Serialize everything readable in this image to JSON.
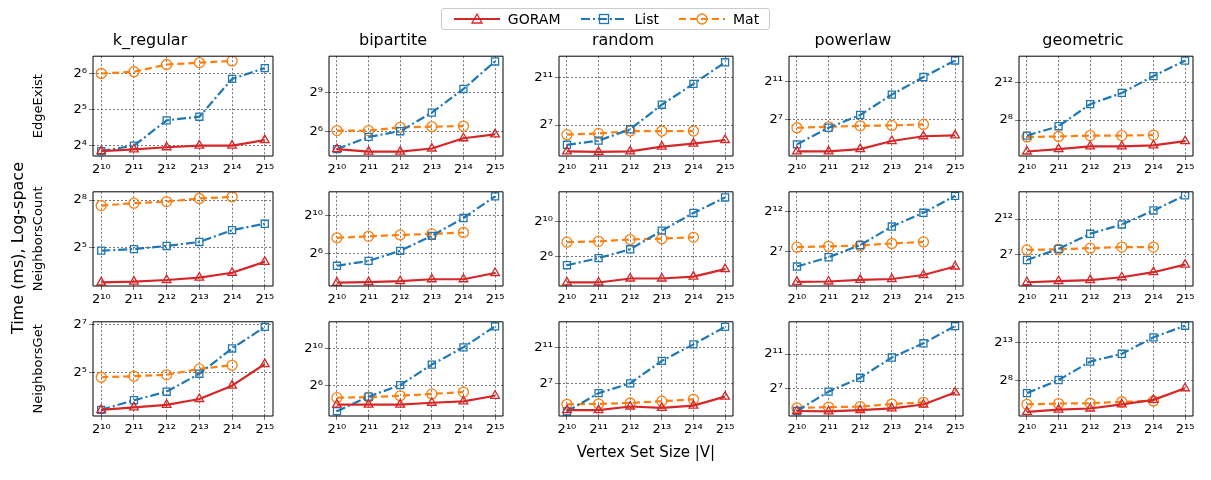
{
  "chart_data": [
    {
      "type": "line",
      "title": "k_regular",
      "ylabel": "EdgeExist",
      "legend": "top",
      "grid": true,
      "log": "xy",
      "x": [
        1024,
        2048,
        4096,
        8192,
        16384,
        32768
      ],
      "xlim": [
        860,
        39000
      ],
      "xticks": [
        {
          "value": 1024,
          "label": "2¹⁰"
        },
        {
          "value": 2048,
          "label": "2¹¹"
        },
        {
          "value": 4096,
          "label": "2¹²"
        },
        {
          "value": 8192,
          "label": "2¹³"
        },
        {
          "value": 16384,
          "label": "2¹⁴"
        },
        {
          "value": 32768,
          "label": "2¹⁵"
        }
      ],
      "ylim": [
        13.1,
        89.3
      ],
      "yticks": [
        {
          "value": 16,
          "label": "2⁴"
        },
        {
          "value": 32,
          "label": "2⁵"
        },
        {
          "value": 64,
          "label": "2⁶"
        }
      ],
      "series": [
        {
          "name": "GORAM",
          "color": "#d62728",
          "marker": "triangle",
          "line_style": "solid",
          "values": [
            14.4,
            14.9,
            15.5,
            16,
            16,
            17.8
          ]
        },
        {
          "name": "List",
          "color": "#1f77b4",
          "marker": "square",
          "line_style": "dashdot",
          "values": [
            14.4,
            16,
            26,
            27.9,
            57.7,
            71
          ]
        },
        {
          "name": "Mat",
          "color": "#ff7f0e",
          "marker": "circle",
          "line_style": "dashed",
          "values": [
            64,
            66.2,
            76.1,
            78.8,
            81.6,
            null
          ]
        }
      ]
    },
    {
      "type": "line",
      "title": "bipartite",
      "grid": true,
      "log": "xy",
      "x": [
        1024,
        2048,
        4096,
        8192,
        16384,
        32768
      ],
      "xlim": [
        860,
        39000
      ],
      "xticks": [
        {
          "value": 1024,
          "label": "2¹⁰"
        },
        {
          "value": 2048,
          "label": "2¹¹"
        },
        {
          "value": 4096,
          "label": "2¹²"
        },
        {
          "value": 8192,
          "label": "2¹³"
        },
        {
          "value": 16384,
          "label": "2¹⁴"
        },
        {
          "value": 32768,
          "label": "2¹⁵"
        }
      ],
      "ylim": [
        16.7,
        3716
      ],
      "yticks": [
        {
          "value": 64,
          "label": "2⁶"
        },
        {
          "value": 512,
          "label": "2⁹"
        }
      ],
      "series": [
        {
          "color": "#d62728",
          "marker": "triangle",
          "line_style": "solid",
          "values": [
            24.3,
            21.1,
            21.1,
            25.1,
            43.7,
            53.8
          ]
        },
        {
          "color": "#1f77b4",
          "marker": "square",
          "line_style": "dashdot",
          "values": [
            24.3,
            46.9,
            64,
            175,
            630,
            2798
          ]
        },
        {
          "color": "#ff7f0e",
          "marker": "circle",
          "line_style": "dashed",
          "values": [
            66.2,
            66.2,
            78.8,
            81.6,
            84.4,
            null
          ]
        }
      ]
    },
    {
      "type": "line",
      "title": "random",
      "grid": true,
      "log": "xy",
      "x": [
        1024,
        2048,
        4096,
        8192,
        16384,
        32768
      ],
      "xlim": [
        860,
        39000
      ],
      "xticks": [
        {
          "value": 1024,
          "label": "2¹⁰"
        },
        {
          "value": 2048,
          "label": "2¹¹"
        },
        {
          "value": 4096,
          "label": "2¹²"
        },
        {
          "value": 8192,
          "label": "2¹³"
        },
        {
          "value": 16384,
          "label": "2¹⁴"
        },
        {
          "value": 32768,
          "label": "2¹⁵"
        }
      ],
      "ylim": [
        21.3,
        6937
      ],
      "yticks": [
        {
          "value": 128,
          "label": "2⁷"
        },
        {
          "value": 2048,
          "label": "2¹¹"
        }
      ],
      "series": [
        {
          "color": "#d62728",
          "marker": "triangle",
          "line_style": "solid",
          "values": [
            27.9,
            26.9,
            27.9,
            36.8,
            43.7,
            53.8
          ]
        },
        {
          "color": "#1f77b4",
          "marker": "square",
          "line_style": "dashdot",
          "values": [
            40.8,
            52,
            100.4,
            416,
            1399,
            4870
          ]
        },
        {
          "color": "#ff7f0e",
          "marker": "circle",
          "line_style": "dashed",
          "values": [
            73.5,
            78.8,
            90.5,
            90.5,
            90.5,
            null
          ]
        }
      ]
    },
    {
      "type": "line",
      "title": "powerlaw",
      "grid": true,
      "log": "xy",
      "x": [
        1024,
        2048,
        4096,
        8192,
        16384,
        32768
      ],
      "xlim": [
        860,
        39000
      ],
      "xticks": [
        {
          "value": 1024,
          "label": "2¹⁰"
        },
        {
          "value": 2048,
          "label": "2¹¹"
        },
        {
          "value": 4096,
          "label": "2¹²"
        },
        {
          "value": 8192,
          "label": "2¹³"
        },
        {
          "value": 16384,
          "label": "2¹⁴"
        },
        {
          "value": 32768,
          "label": "2¹⁵"
        }
      ],
      "ylim": [
        9,
        13308
      ],
      "yticks": [
        {
          "value": 128,
          "label": "2⁷"
        },
        {
          "value": 2048,
          "label": "2¹¹"
        }
      ],
      "series": [
        {
          "color": "#d62728",
          "marker": "triangle",
          "line_style": "solid",
          "values": [
            12.6,
            12.6,
            14.9,
            26.9,
            38.1,
            40.8
          ]
        },
        {
          "color": "#1f77b4",
          "marker": "square",
          "line_style": "dashdot",
          "values": [
            21.1,
            71,
            181,
            803,
            2896,
            9741
          ]
        },
        {
          "color": "#ff7f0e",
          "marker": "circle",
          "line_style": "dashed",
          "values": [
            71,
            76.1,
            81.6,
            84.4,
            90.5,
            null
          ]
        }
      ]
    },
    {
      "type": "line",
      "title": "geometric",
      "grid": true,
      "log": "xy",
      "x": [
        1024,
        2048,
        4096,
        8192,
        16384,
        32768
      ],
      "xlim": [
        860,
        39000
      ],
      "xticks": [
        {
          "value": 1024,
          "label": "2¹⁰"
        },
        {
          "value": 2048,
          "label": "2¹¹"
        },
        {
          "value": 4096,
          "label": "2¹²"
        },
        {
          "value": 8192,
          "label": "2¹³"
        },
        {
          "value": 16384,
          "label": "2¹⁴"
        },
        {
          "value": 32768,
          "label": "2¹⁵"
        }
      ],
      "ylim": [
        18,
        28919
      ],
      "yticks": [
        {
          "value": 256,
          "label": "2⁸"
        },
        {
          "value": 4096,
          "label": "2¹²"
        }
      ],
      "series": [
        {
          "color": "#d62728",
          "marker": "triangle",
          "line_style": "solid",
          "values": [
            25.1,
            29.9,
            36.8,
            36.8,
            39.4,
            53.8
          ]
        },
        {
          "color": "#1f77b4",
          "marker": "square",
          "line_style": "dashdot",
          "values": [
            81.6,
            163,
            832,
            1911,
            6654,
            20886
          ]
        },
        {
          "color": "#ff7f0e",
          "marker": "circle",
          "line_style": "dashed",
          "values": [
            73.5,
            76.1,
            81.6,
            81.6,
            84.4,
            null
          ]
        }
      ]
    },
    {
      "type": "line",
      "ylabel": "NeighborsCount",
      "annotations": [
        "Time (ms), Log-space"
      ],
      "grid": true,
      "log": "xy",
      "x": [
        1024,
        2048,
        4096,
        8192,
        16384,
        32768
      ],
      "xlim": [
        860,
        39000
      ],
      "xticks": [
        {
          "value": 1024,
          "label": "2¹⁰"
        },
        {
          "value": 2048,
          "label": "2¹¹"
        },
        {
          "value": 4096,
          "label": "2¹²"
        },
        {
          "value": 8192,
          "label": "2¹³"
        },
        {
          "value": 16384,
          "label": "2¹⁴"
        },
        {
          "value": 32768,
          "label": "2¹⁵"
        }
      ],
      "ylim": [
        5.94,
        367
      ],
      "yticks": [
        {
          "value": 32,
          "label": "2⁵"
        },
        {
          "value": 256,
          "label": "2⁸"
        }
      ],
      "series": [
        {
          "color": "#d62728",
          "marker": "triangle",
          "line_style": "solid",
          "values": [
            6.96,
            7.21,
            7.73,
            8.57,
            10.6,
            17.1
          ]
        },
        {
          "color": "#1f77b4",
          "marker": "square",
          "line_style": "dashdot",
          "values": [
            27.9,
            29.9,
            34.3,
            40.8,
            68.6,
            90.5
          ]
        },
        {
          "color": "#ff7f0e",
          "marker": "circle",
          "line_style": "dashed",
          "values": [
            201,
            223,
            239,
            274,
            294,
            null
          ]
        }
      ]
    },
    {
      "type": "line",
      "grid": true,
      "log": "xy",
      "x": [
        1024,
        2048,
        4096,
        8192,
        16384,
        32768
      ],
      "xlim": [
        860,
        39000
      ],
      "xticks": [
        {
          "value": 1024,
          "label": "2¹⁰"
        },
        {
          "value": 2048,
          "label": "2¹¹"
        },
        {
          "value": 4096,
          "label": "2¹²"
        },
        {
          "value": 8192,
          "label": "2¹³"
        },
        {
          "value": 16384,
          "label": "2¹⁴"
        },
        {
          "value": 32768,
          "label": "2¹⁵"
        }
      ],
      "ylim": [
        6.28,
        5480
      ],
      "yticks": [
        {
          "value": 64,
          "label": "2⁶"
        },
        {
          "value": 1024,
          "label": "2¹⁰"
        }
      ],
      "series": [
        {
          "color": "#d62728",
          "marker": "triangle",
          "line_style": "solid",
          "values": [
            8,
            8.28,
            8.88,
            10.2,
            10.2,
            16
          ]
        },
        {
          "color": "#1f77b4",
          "marker": "square",
          "line_style": "dashdot",
          "values": [
            26.9,
            38.1,
            78.8,
            231,
            832,
            3957
          ]
        },
        {
          "color": "#ff7f0e",
          "marker": "circle",
          "line_style": "dashed",
          "values": [
            201,
            223,
            247,
            265,
            294,
            null
          ]
        }
      ]
    },
    {
      "type": "line",
      "grid": true,
      "log": "xy",
      "x": [
        1024,
        2048,
        4096,
        8192,
        16384,
        32768
      ],
      "xlim": [
        860,
        39000
      ],
      "xticks": [
        {
          "value": 1024,
          "label": "2¹⁰"
        },
        {
          "value": 2048,
          "label": "2¹¹"
        },
        {
          "value": 4096,
          "label": "2¹²"
        },
        {
          "value": 8192,
          "label": "2¹³"
        },
        {
          "value": 16384,
          "label": "2¹⁴"
        },
        {
          "value": 32768,
          "label": "2¹⁵"
        }
      ],
      "ylim": [
        6.5,
        10366
      ],
      "yticks": [
        {
          "value": 64,
          "label": "2⁶"
        },
        {
          "value": 1024,
          "label": "2¹⁰"
        }
      ],
      "series": [
        {
          "color": "#d62728",
          "marker": "triangle",
          "line_style": "solid",
          "values": [
            8.57,
            8.57,
            11.7,
            11.7,
            13.5,
            24.3
          ]
        },
        {
          "color": "#1f77b4",
          "marker": "square",
          "line_style": "dashdot",
          "values": [
            33.1,
            57.7,
            115,
            495,
            1978,
            6654
          ]
        },
        {
          "color": "#ff7f0e",
          "marker": "circle",
          "line_style": "dashed",
          "values": [
            201,
            215,
            247,
            265,
            294,
            null
          ]
        }
      ]
    },
    {
      "type": "line",
      "grid": true,
      "log": "xy",
      "x": [
        1024,
        2048,
        4096,
        8192,
        16384,
        32768
      ],
      "xlim": [
        860,
        39000
      ],
      "xticks": [
        {
          "value": 1024,
          "label": "2¹⁰"
        },
        {
          "value": 2048,
          "label": "2¹¹"
        },
        {
          "value": 4096,
          "label": "2¹²"
        },
        {
          "value": 8192,
          "label": "2¹³"
        },
        {
          "value": 16384,
          "label": "2¹⁴"
        },
        {
          "value": 32768,
          "label": "2¹⁵"
        }
      ],
      "ylim": [
        6.92,
        22385
      ],
      "yticks": [
        {
          "value": 128,
          "label": "2⁷"
        },
        {
          "value": 4096,
          "label": "2¹²"
        }
      ],
      "series": [
        {
          "color": "#d62728",
          "marker": "triangle",
          "line_style": "solid",
          "values": [
            9.85,
            10.2,
            11.7,
            12.6,
            17.8,
            36.8
          ]
        },
        {
          "color": "#1f77b4",
          "marker": "square",
          "line_style": "dashdot",
          "values": [
            36.8,
            81.6,
            231,
            1137,
            3692,
            15828
          ]
        },
        {
          "color": "#ff7f0e",
          "marker": "circle",
          "line_style": "dashed",
          "values": [
            194,
            208,
            223,
            265,
            304,
            null
          ]
        }
      ]
    },
    {
      "type": "line",
      "grid": true,
      "log": "xy",
      "x": [
        1024,
        2048,
        4096,
        8192,
        16384,
        32768
      ],
      "xlim": [
        860,
        39000
      ],
      "xticks": [
        {
          "value": 1024,
          "label": "2¹⁰"
        },
        {
          "value": 2048,
          "label": "2¹¹"
        },
        {
          "value": 4096,
          "label": "2¹²"
        },
        {
          "value": 8192,
          "label": "2¹³"
        },
        {
          "value": 16384,
          "label": "2¹⁴"
        },
        {
          "value": 32768,
          "label": "2¹⁵"
        }
      ],
      "ylim": [
        6.41,
        57052
      ],
      "yticks": [
        {
          "value": 128,
          "label": "2⁷"
        },
        {
          "value": 4096,
          "label": "2¹²"
        }
      ],
      "series": [
        {
          "color": "#d62728",
          "marker": "triangle",
          "line_style": "solid",
          "values": [
            9.19,
            10.2,
            11.3,
            14.9,
            24.3,
            50.2
          ]
        },
        {
          "color": "#1f77b4",
          "marker": "square",
          "line_style": "dashdot",
          "values": [
            78.8,
            231,
            989,
            2436,
            9410,
            40342
          ]
        },
        {
          "color": "#ff7f0e",
          "marker": "circle",
          "line_style": "dashed",
          "values": [
            208,
            223,
            247,
            274,
            274,
            null
          ]
        }
      ]
    },
    {
      "type": "line",
      "ylabel": "NeighborsGet",
      "grid": true,
      "log": "xy",
      "x": [
        1024,
        2048,
        4096,
        8192,
        16384,
        32768
      ],
      "xlim": [
        860,
        39000
      ],
      "xticks": [
        {
          "value": 1024,
          "label": "2¹⁰"
        },
        {
          "value": 2048,
          "label": "2¹¹"
        },
        {
          "value": 4096,
          "label": "2¹²"
        },
        {
          "value": 8192,
          "label": "2¹³"
        },
        {
          "value": 16384,
          "label": "2¹⁴"
        },
        {
          "value": 32768,
          "label": "2¹⁵"
        }
      ],
      "ylim": [
        9.13,
        138
      ],
      "yticks": [
        {
          "value": 32,
          "label": "2⁵"
        },
        {
          "value": 128,
          "label": "2⁷"
        }
      ],
      "series": [
        {
          "color": "#d62728",
          "marker": "triangle",
          "line_style": "solid",
          "values": [
            10.9,
            11.7,
            12.6,
            14.9,
            21.9,
            40.8
          ]
        },
        {
          "color": "#1f77b4",
          "marker": "square",
          "line_style": "dashdot",
          "values": [
            10.9,
            14.4,
            18.4,
            30.9,
            64,
            119
          ]
        },
        {
          "color": "#ff7f0e",
          "marker": "circle",
          "line_style": "dashed",
          "values": [
            27.9,
            28.8,
            29.9,
            35.5,
            39.4,
            null
          ]
        }
      ]
    },
    {
      "type": "line",
      "grid": true,
      "log": "xy",
      "x": [
        1024,
        2048,
        4096,
        8192,
        16384,
        32768
      ],
      "xlim": [
        860,
        39000
      ],
      "xticks": [
        {
          "value": 1024,
          "label": "2¹⁰"
        },
        {
          "value": 2048,
          "label": "2¹¹"
        },
        {
          "value": 4096,
          "label": "2¹²"
        },
        {
          "value": 8192,
          "label": "2¹³"
        },
        {
          "value": 16384,
          "label": "2¹⁴"
        },
        {
          "value": 32768,
          "label": "2¹⁵"
        }
      ],
      "ylim": [
        6.87,
        7590
      ],
      "yticks": [
        {
          "value": 64,
          "label": "2⁶"
        },
        {
          "value": 1024,
          "label": "2¹⁰"
        }
      ],
      "series": [
        {
          "color": "#d62728",
          "marker": "triangle",
          "line_style": "solid",
          "values": [
            16,
            16,
            16,
            18.4,
            20.4,
            30.9
          ]
        },
        {
          "color": "#1f77b4",
          "marker": "square",
          "line_style": "dashdot",
          "values": [
            9.85,
            28.8,
            68.6,
            315,
            1137,
            5405
          ]
        },
        {
          "color": "#ff7f0e",
          "marker": "circle",
          "line_style": "dashed",
          "values": [
            26.9,
            27.9,
            30.9,
            35.5,
            40.8,
            null
          ]
        }
      ]
    },
    {
      "type": "line",
      "xlabel": "Vertex Set Size |V|",
      "grid": true,
      "log": "xy",
      "x": [
        1024,
        2048,
        4096,
        8192,
        16384,
        32768
      ],
      "xlim": [
        860,
        39000
      ],
      "xticks": [
        {
          "value": 1024,
          "label": "2¹⁰"
        },
        {
          "value": 2048,
          "label": "2¹¹"
        },
        {
          "value": 4096,
          "label": "2¹²"
        },
        {
          "value": 8192,
          "label": "2¹³"
        },
        {
          "value": 16384,
          "label": "2¹⁴"
        },
        {
          "value": 32768,
          "label": "2¹⁵"
        }
      ],
      "ylim": [
        10.5,
        15500
      ],
      "yticks": [
        {
          "value": 128,
          "label": "2⁷"
        },
        {
          "value": 2048,
          "label": "2¹¹"
        }
      ],
      "series": [
        {
          "color": "#d62728",
          "marker": "triangle",
          "line_style": "solid",
          "values": [
            16.6,
            16.6,
            21.9,
            19.7,
            23.4,
            46.9
          ]
        },
        {
          "color": "#1f77b4",
          "marker": "square",
          "line_style": "dashdot",
          "values": [
            14.9,
            61.8,
            132,
            750,
            2702,
            10440
          ]
        },
        {
          "color": "#ff7f0e",
          "marker": "circle",
          "line_style": "dashed",
          "values": [
            26,
            26.9,
            28.8,
            33.1,
            38.1,
            null
          ]
        }
      ]
    },
    {
      "type": "line",
      "grid": true,
      "log": "xy",
      "x": [
        1024,
        2048,
        4096,
        8192,
        16384,
        32768
      ],
      "xlim": [
        860,
        39000
      ],
      "xticks": [
        {
          "value": 1024,
          "label": "2¹⁰"
        },
        {
          "value": 2048,
          "label": "2¹¹"
        },
        {
          "value": 4096,
          "label": "2¹²"
        },
        {
          "value": 8192,
          "label": "2¹³"
        },
        {
          "value": 16384,
          "label": "2¹⁴"
        },
        {
          "value": 32768,
          "label": "2¹⁵"
        }
      ],
      "ylim": [
        14.1,
        27350
      ],
      "yticks": [
        {
          "value": 128,
          "label": "2⁷"
        },
        {
          "value": 2048,
          "label": "2¹¹"
        }
      ],
      "series": [
        {
          "color": "#d62728",
          "marker": "triangle",
          "line_style": "solid",
          "values": [
            21.1,
            20.4,
            22.6,
            26,
            35.5,
            93.7
          ]
        },
        {
          "color": "#1f77b4",
          "marker": "square",
          "line_style": "dashdot",
          "values": [
            21.1,
            100,
            304,
            1552,
            4870,
            19484
          ]
        },
        {
          "color": "#ff7f0e",
          "marker": "circle",
          "line_style": "dashed",
          "values": [
            26.9,
            28.8,
            29.9,
            36.8,
            42.2,
            null
          ]
        }
      ]
    },
    {
      "type": "line",
      "grid": true,
      "log": "xy",
      "x": [
        1024,
        2048,
        4096,
        8192,
        16384,
        32768
      ],
      "xlim": [
        860,
        39000
      ],
      "xticks": [
        {
          "value": 1024,
          "label": "2¹⁰"
        },
        {
          "value": 2048,
          "label": "2¹¹"
        },
        {
          "value": 4096,
          "label": "2¹²"
        },
        {
          "value": 8192,
          "label": "2¹³"
        },
        {
          "value": 16384,
          "label": "2¹⁴"
        },
        {
          "value": 32768,
          "label": "2¹⁵"
        }
      ],
      "ylim": [
        9.5,
        57855
      ],
      "yticks": [
        {
          "value": 256,
          "label": "2⁸"
        },
        {
          "value": 8192,
          "label": "2¹³"
        }
      ],
      "series": [
        {
          "color": "#d62728",
          "marker": "triangle",
          "line_style": "solid",
          "values": [
            13.9,
            17.1,
            19,
            27.9,
            42.2,
            124
          ]
        },
        {
          "color": "#1f77b4",
          "marker": "square",
          "line_style": "dashdot",
          "values": [
            78.8,
            265,
            1448,
            2997,
            13777,
            40342
          ]
        },
        {
          "color": "#ff7f0e",
          "marker": "circle",
          "line_style": "dashed",
          "values": [
            27.9,
            29.9,
            30.9,
            35.5,
            38.1,
            null
          ]
        }
      ]
    }
  ]
}
